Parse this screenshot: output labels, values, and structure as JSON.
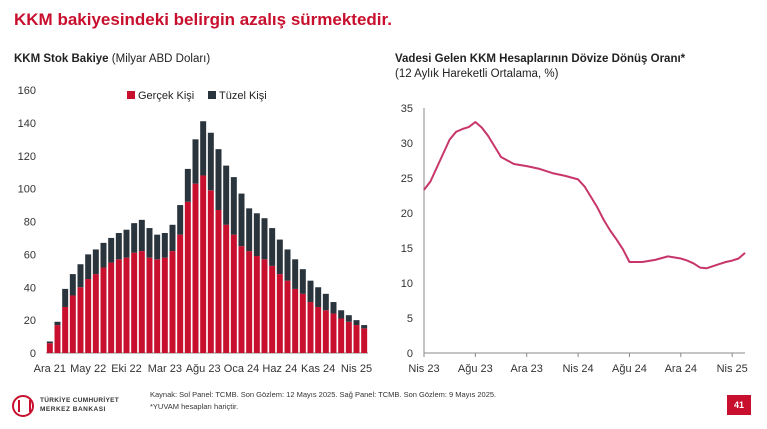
{
  "slide": {
    "title": "KKM bakiyesindeki belirgin azalış sürmektedir.",
    "page_number": "41"
  },
  "left_panel": {
    "title_bold": "KKM Stok Bakiye",
    "title_rest": " (Milyar ABD Doları)"
  },
  "right_panel": {
    "title": "Vadesi Gelen KKM Hesaplarının Dövize Dönüş Oranı*",
    "subtitle": "(12 Aylık Hareketli Ortalama, %)"
  },
  "footer": {
    "logo_line1": "TÜRKİYE CUMHURİYET",
    "logo_line2": "MERKEZ BANKASI",
    "source": "Kaynak: Sol Panel: TCMB. Son Gözlem: 12 Mayıs 2025. Sağ Panel: TCMB. Son Gözlem: 9 Mayıs 2025.",
    "note": "*YUVAM hesapları hariçtir."
  },
  "colors": {
    "accent": "#c8102e",
    "real_person": "#c8102e",
    "legal_person": "#2a343d",
    "line": "#c8356a"
  },
  "chart_data": [
    {
      "type": "bar",
      "stacked": true,
      "ylim": [
        0,
        160
      ],
      "yticks": [
        0,
        20,
        40,
        60,
        80,
        100,
        120,
        140,
        160
      ],
      "x_tick_labels": [
        "Ara 21",
        "May 22",
        "Eki 22",
        "Mar 23",
        "Ağu 23",
        "Oca 24",
        "Haz 24",
        "Kas 24",
        "Nis 25"
      ],
      "x_tick_positions": [
        0,
        5,
        10,
        15,
        20,
        25,
        30,
        35,
        40
      ],
      "legend": [
        "Gerçek Kişi",
        "Tüzel Kişi"
      ],
      "legend_position": "top",
      "series": [
        {
          "name": "Gerçek Kişi",
          "values": [
            6,
            17,
            28,
            35,
            40,
            45,
            48,
            52,
            55,
            57,
            58,
            61,
            62,
            58,
            57,
            58,
            62,
            72,
            92,
            103,
            108,
            99,
            87,
            78,
            72,
            65,
            62,
            59,
            57,
            53,
            48,
            44,
            39,
            36,
            31,
            28,
            26,
            24,
            21,
            19,
            17,
            15
          ]
        },
        {
          "name": "Tüzel Kişi",
          "values": [
            1,
            2,
            11,
            13,
            14,
            15,
            15,
            15,
            15,
            16,
            17,
            18,
            19,
            18,
            15,
            15,
            16,
            18,
            20,
            27,
            33,
            35,
            37,
            36,
            35,
            32,
            26,
            26,
            25,
            23,
            21,
            19,
            18,
            15,
            13,
            12,
            10,
            7,
            5,
            4,
            3,
            2
          ]
        }
      ]
    },
    {
      "type": "line",
      "ylim": [
        0,
        35
      ],
      "yticks": [
        0,
        5,
        10,
        15,
        20,
        25,
        30,
        35
      ],
      "x_tick_labels": [
        "Nis 23",
        "Ağu 23",
        "Ara 23",
        "Nis 24",
        "Ağu 24",
        "Ara 24",
        "Nis 25"
      ],
      "x_tick_positions": [
        0,
        4,
        8,
        12,
        16,
        20,
        24
      ],
      "xlim": [
        0,
        25
      ],
      "series": [
        {
          "x": [
            0,
            0.5,
            1,
            1.5,
            2,
            2.5,
            3,
            3.5,
            4,
            4.5,
            5,
            5.5,
            6,
            7,
            8,
            9,
            10,
            11,
            12,
            12.5,
            13,
            13.5,
            14,
            14.5,
            15,
            15.5,
            16,
            17,
            18,
            19,
            20,
            20.5,
            21,
            21.5,
            22,
            22.5,
            23,
            23.5,
            24,
            24.5,
            25
          ],
          "values": [
            23.3,
            24.5,
            26.5,
            28.5,
            30.5,
            31.6,
            32.0,
            32.3,
            33.0,
            32.2,
            31.0,
            29.5,
            28.0,
            27.0,
            26.7,
            26.3,
            25.7,
            25.3,
            24.8,
            23.8,
            22.3,
            20.8,
            19.0,
            17.5,
            16.2,
            14.8,
            13.0,
            13.0,
            13.3,
            13.8,
            13.5,
            13.2,
            12.8,
            12.2,
            12.1,
            12.4,
            12.7,
            13.0,
            13.2,
            13.5,
            14.3
          ]
        }
      ]
    }
  ]
}
